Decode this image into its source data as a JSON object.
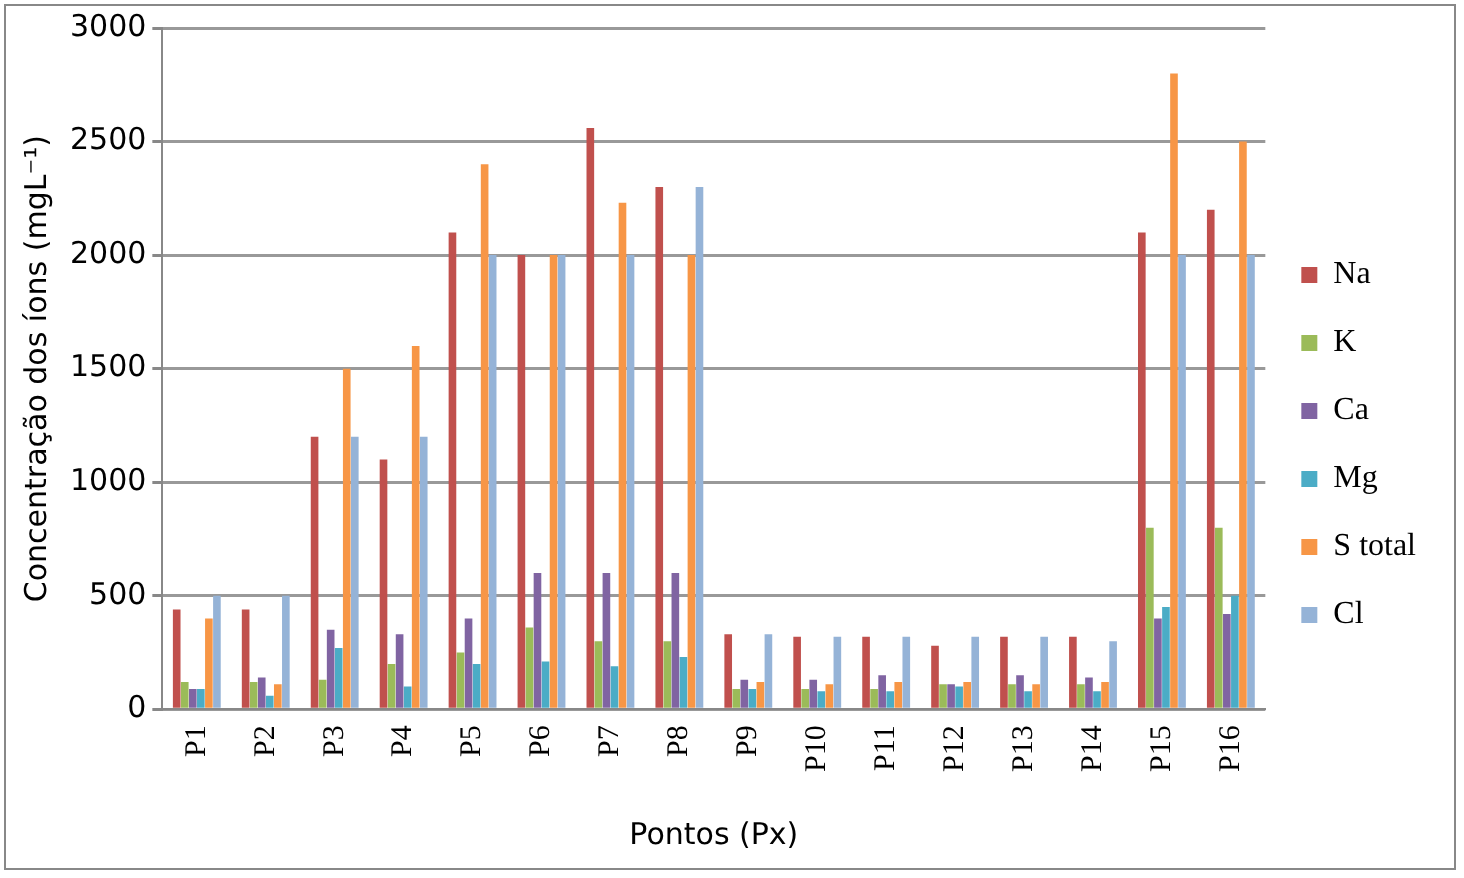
{
  "chart_data": {
    "type": "bar",
    "xlabel": "Pontos (Px)",
    "ylabel": "Concentração dos íons (mgL⁻¹)",
    "categories": [
      "P1",
      "P2",
      "P3",
      "P4",
      "P5",
      "P6",
      "P7",
      "P8",
      "P9",
      "P10",
      "P11",
      "P12",
      "P13",
      "P14",
      "P15",
      "P16"
    ],
    "series": [
      {
        "name": "Na",
        "color": "#c0504d",
        "values": [
          440,
          440,
          1200,
          1100,
          2100,
          2000,
          2560,
          2300,
          330,
          320,
          320,
          280,
          320,
          320,
          2100,
          2200
        ]
      },
      {
        "name": "K",
        "color": "#9bbb59",
        "values": [
          120,
          120,
          130,
          200,
          250,
          360,
          300,
          300,
          90,
          90,
          90,
          110,
          110,
          110,
          800,
          800
        ]
      },
      {
        "name": "Ca",
        "color": "#8064a2",
        "values": [
          90,
          140,
          350,
          330,
          400,
          600,
          600,
          600,
          130,
          130,
          150,
          110,
          150,
          140,
          400,
          420
        ]
      },
      {
        "name": "Mg",
        "color": "#4bacc6",
        "values": [
          90,
          60,
          270,
          100,
          200,
          210,
          190,
          230,
          90,
          80,
          80,
          100,
          80,
          80,
          450,
          500
        ]
      },
      {
        "name": "S total",
        "color": "#f79646",
        "values": [
          400,
          110,
          1500,
          1600,
          2400,
          2000,
          2230,
          2000,
          120,
          110,
          120,
          120,
          110,
          120,
          2800,
          2500
        ]
      },
      {
        "name": "Cl",
        "color": "#95b3d7",
        "values": [
          500,
          500,
          1200,
          1200,
          2000,
          2000,
          2000,
          2300,
          330,
          320,
          320,
          320,
          320,
          300,
          2000,
          2000
        ]
      }
    ],
    "ylim": [
      0,
      3000
    ],
    "yticks": [
      0,
      500,
      1000,
      1500,
      2000,
      2500,
      3000
    ],
    "grid": "y",
    "legend": "right"
  }
}
